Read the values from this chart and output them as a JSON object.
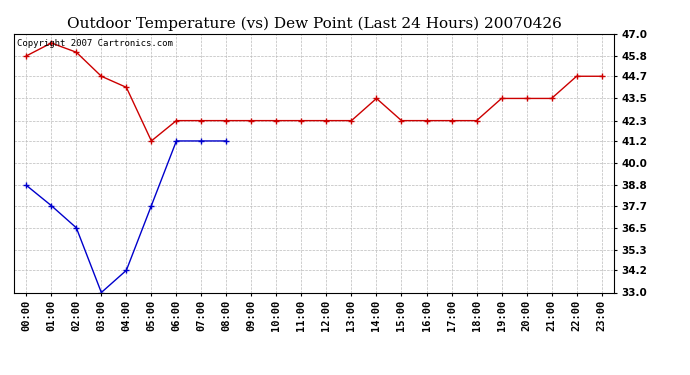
{
  "title": "Outdoor Temperature (vs) Dew Point (Last 24 Hours) 20070426",
  "copyright_text": "Copyright 2007 Cartronics.com",
  "x_labels": [
    "00:00",
    "01:00",
    "02:00",
    "03:00",
    "04:00",
    "05:00",
    "06:00",
    "07:00",
    "08:00",
    "09:00",
    "10:00",
    "11:00",
    "12:00",
    "13:00",
    "14:00",
    "15:00",
    "16:00",
    "17:00",
    "18:00",
    "19:00",
    "20:00",
    "21:00",
    "22:00",
    "23:00"
  ],
  "temp_data": [
    45.8,
    46.5,
    46.0,
    44.7,
    44.1,
    41.2,
    42.3,
    42.3,
    42.3,
    42.3,
    42.3,
    42.3,
    42.3,
    42.3,
    43.5,
    42.3,
    42.3,
    42.3,
    42.3,
    43.5,
    43.5,
    43.5,
    44.7,
    44.7
  ],
  "dew_data": [
    38.8,
    37.7,
    36.5,
    33.0,
    34.2,
    37.7,
    41.2,
    41.2,
    41.2,
    null,
    null,
    null,
    null,
    null,
    null,
    null,
    null,
    null,
    null,
    null,
    null,
    null,
    null,
    null
  ],
  "temp_color": "#cc0000",
  "dew_color": "#0000cc",
  "ylim": [
    33.0,
    47.0
  ],
  "yticks": [
    33.0,
    34.2,
    35.3,
    36.5,
    37.7,
    38.8,
    40.0,
    41.2,
    42.3,
    43.5,
    44.7,
    45.8,
    47.0
  ],
  "background_color": "#ffffff",
  "plot_bg_color": "#ffffff",
  "grid_color": "#bbbbbb",
  "title_fontsize": 11,
  "tick_fontsize": 7.5,
  "copyright_fontsize": 6.5
}
